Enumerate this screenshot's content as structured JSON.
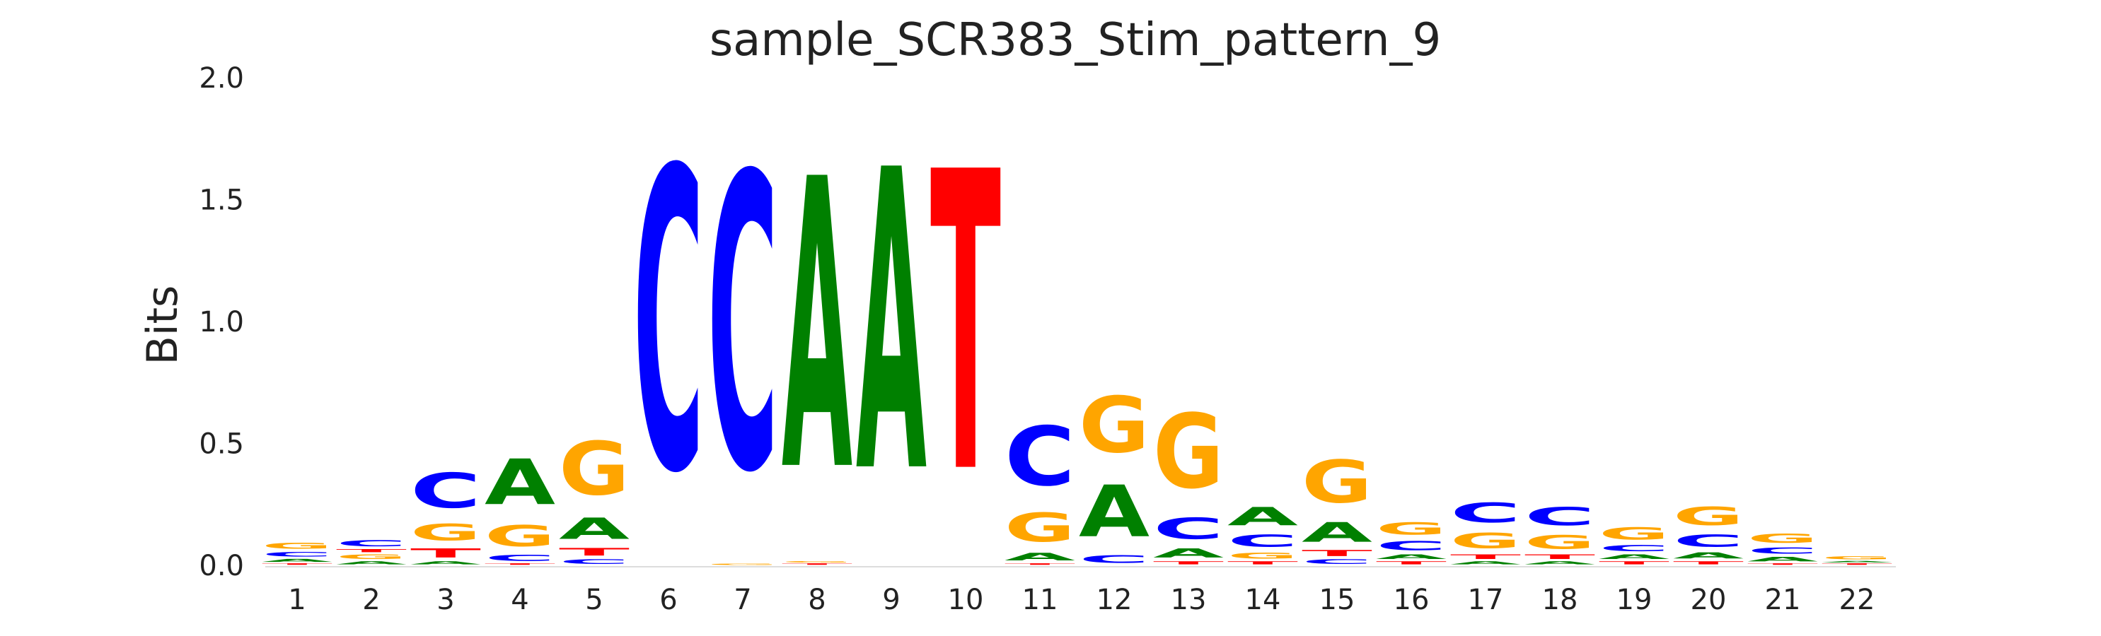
{
  "chart_data": {
    "type": "sequence-logo",
    "title": "sample_SCR383_Stim_pattern_9",
    "xlabel": "",
    "ylabel": "Bits",
    "ylim": [
      0,
      2.0
    ],
    "yticks": [
      "0.0",
      "0.5",
      "1.0",
      "1.5",
      "2.0"
    ],
    "x": [
      "1",
      "2",
      "3",
      "4",
      "5",
      "6",
      "7",
      "8",
      "9",
      "10",
      "11",
      "12",
      "13",
      "14",
      "15",
      "16",
      "17",
      "18",
      "19",
      "20",
      "21",
      "22"
    ],
    "colors": {
      "A": "#008000",
      "C": "#0000ff",
      "G": "#ffa500",
      "T": "#ff0000"
    },
    "positions": [
      [
        [
          "T",
          0.01
        ],
        [
          "A",
          0.02
        ],
        [
          "C",
          0.03
        ],
        [
          "G",
          0.04
        ]
      ],
      [
        [
          "A",
          0.02
        ],
        [
          "G",
          0.03
        ],
        [
          "T",
          0.02
        ],
        [
          "C",
          0.04
        ]
      ],
      [
        [
          "A",
          0.02
        ],
        [
          "T",
          0.06
        ],
        [
          "G",
          0.11
        ],
        [
          "C",
          0.23
        ]
      ],
      [
        [
          "T",
          0.01
        ],
        [
          "C",
          0.04
        ],
        [
          "G",
          0.14
        ],
        [
          "A",
          0.3
        ]
      ],
      [
        [
          "C",
          0.03
        ],
        [
          "T",
          0.05
        ],
        [
          "A",
          0.14
        ],
        [
          "G",
          0.35
        ]
      ],
      [
        [
          "C",
          1.98
        ]
      ],
      [
        [
          "G",
          0.01
        ],
        [
          "C",
          1.94
        ]
      ],
      [
        [
          "T",
          0.01
        ],
        [
          "G",
          0.01
        ],
        [
          "A",
          1.91
        ]
      ],
      [
        [
          "A",
          1.98
        ]
      ],
      [
        [
          "T",
          1.97
        ]
      ],
      [
        [
          "T",
          0.01
        ],
        [
          "A",
          0.05
        ],
        [
          "G",
          0.19
        ],
        [
          "C",
          0.39
        ]
      ],
      [
        [
          "C",
          0.05
        ],
        [
          "A",
          0.34
        ],
        [
          "G",
          0.37
        ]
      ],
      [
        [
          "T",
          0.02
        ],
        [
          "A",
          0.06
        ],
        [
          "C",
          0.14
        ],
        [
          "G",
          0.49
        ]
      ],
      [
        [
          "T",
          0.02
        ],
        [
          "G",
          0.04
        ],
        [
          "C",
          0.08
        ],
        [
          "A",
          0.12
        ]
      ],
      [
        [
          "C",
          0.03
        ],
        [
          "T",
          0.04
        ],
        [
          "A",
          0.13
        ],
        [
          "G",
          0.28
        ]
      ],
      [
        [
          "T",
          0.02
        ],
        [
          "A",
          0.03
        ],
        [
          "C",
          0.06
        ],
        [
          "G",
          0.08
        ]
      ],
      [
        [
          "A",
          0.02
        ],
        [
          "T",
          0.03
        ],
        [
          "G",
          0.1
        ],
        [
          "C",
          0.13
        ]
      ],
      [
        [
          "A",
          0.02
        ],
        [
          "T",
          0.03
        ],
        [
          "G",
          0.09
        ],
        [
          "C",
          0.12
        ]
      ],
      [
        [
          "T",
          0.02
        ],
        [
          "A",
          0.03
        ],
        [
          "C",
          0.04
        ],
        [
          "G",
          0.08
        ]
      ],
      [
        [
          "T",
          0.02
        ],
        [
          "A",
          0.04
        ],
        [
          "C",
          0.08
        ],
        [
          "G",
          0.12
        ]
      ],
      [
        [
          "T",
          0.01
        ],
        [
          "A",
          0.03
        ],
        [
          "C",
          0.04
        ],
        [
          "G",
          0.06
        ]
      ],
      [
        [
          "T",
          0.01
        ],
        [
          "A",
          0.01
        ],
        [
          "G",
          0.02
        ]
      ]
    ]
  }
}
